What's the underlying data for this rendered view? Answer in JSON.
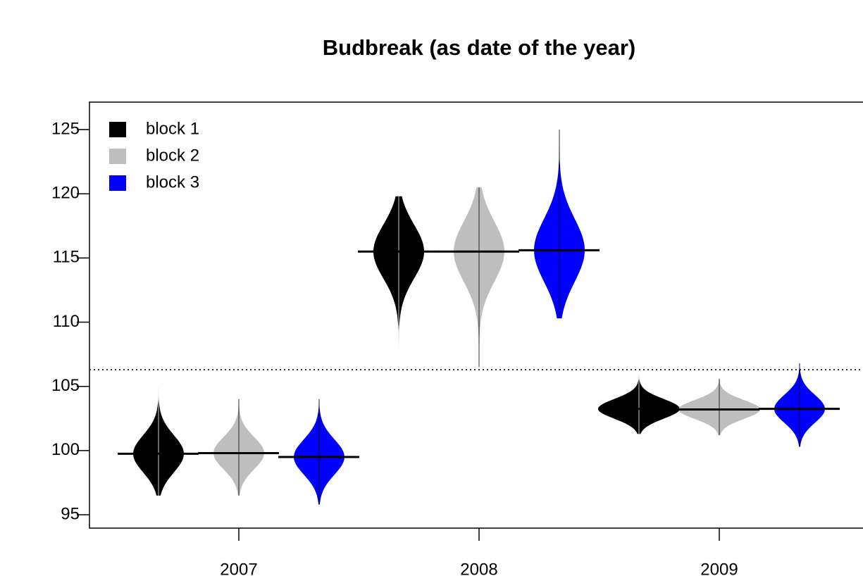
{
  "chart_data": {
    "type": "beanplot",
    "title": "Budbreak (as date of the year)",
    "categories": [
      "2007",
      "2008",
      "2009"
    ],
    "series": [
      {
        "name": "block 1",
        "color": "#000000",
        "values": [
          99.75,
          115.5,
          103.25
        ],
        "min": [
          96.5,
          107.2,
          101.3
        ],
        "max": [
          105.2,
          119.8,
          105.9
        ]
      },
      {
        "name": "block 2",
        "color": "#bebebe",
        "values": [
          99.8,
          115.5,
          103.2
        ],
        "min": [
          96.5,
          106.5,
          101.2
        ],
        "max": [
          104,
          120.5,
          105.6
        ]
      },
      {
        "name": "block 3",
        "color": "#0000ff",
        "values": [
          99.5,
          115.6,
          103.25
        ],
        "min": [
          95.8,
          110.3,
          100.3
        ],
        "max": [
          104,
          125,
          106.8
        ]
      }
    ],
    "overall_mean": 106.3,
    "ylim": [
      93.96,
      127.14
    ],
    "yticks": [
      95,
      100,
      105,
      110,
      115,
      120,
      125
    ],
    "legend": "top-left"
  }
}
